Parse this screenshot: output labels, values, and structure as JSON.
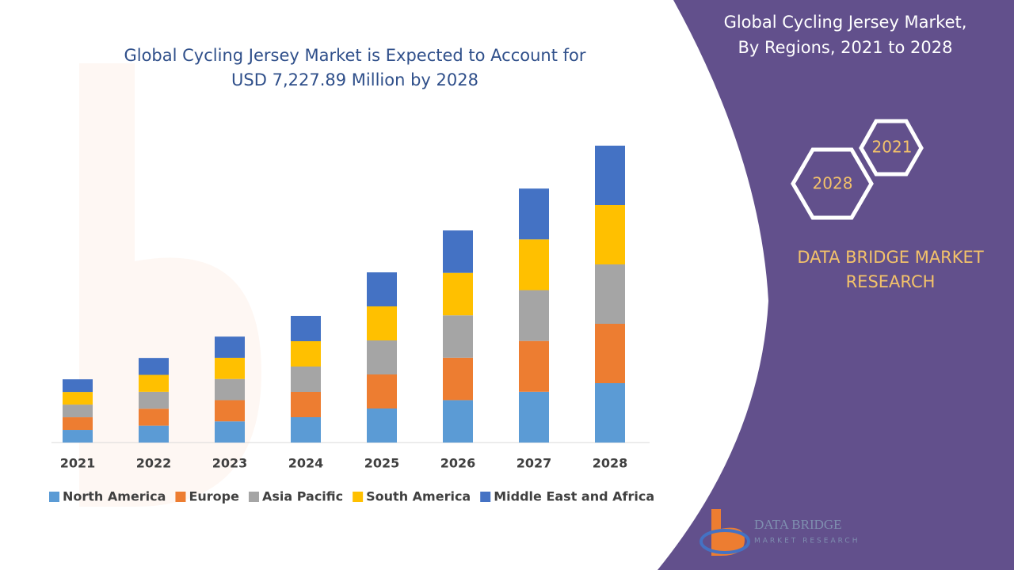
{
  "chart_data": {
    "type": "stacked-bar",
    "title": [
      "Global Cycling Jersey Market is Expected to Account for",
      "USD 7,227.89 Million by 2028"
    ],
    "categories": [
      "2021",
      "2022",
      "2023",
      "2024",
      "2025",
      "2026",
      "2027",
      "2028"
    ],
    "series": [
      {
        "name": "North America",
        "color": "#5b9bd5",
        "values": [
          308,
          412,
          516,
          617,
          829,
          1033,
          1237,
          1446
        ]
      },
      {
        "name": "Europe",
        "color": "#ed7d31",
        "values": [
          308,
          412,
          516,
          617,
          829,
          1033,
          1237,
          1446
        ]
      },
      {
        "name": "Asia Pacific",
        "color": "#a5a5a5",
        "values": [
          308,
          412,
          516,
          617,
          829,
          1033,
          1237,
          1446
        ]
      },
      {
        "name": "South America",
        "color": "#ffc000",
        "values": [
          308,
          412,
          516,
          617,
          829,
          1033,
          1237,
          1446
        ]
      },
      {
        "name": "Middle East and Africa",
        "color": "#4472c4",
        "values": [
          308,
          412,
          516,
          617,
          829,
          1033,
          1237,
          1446
        ]
      }
    ]
  },
  "panel": {
    "heading": [
      "Global Cycling Jersey Market,",
      "By Regions, 2021 to 2028"
    ],
    "hexagons": [
      "2021",
      "2028"
    ],
    "brand": [
      "DATA BRIDGE MARKET",
      "RESEARCH"
    ],
    "logo": [
      "DATA BRIDGE",
      "MARKET RESEARCH"
    ]
  }
}
